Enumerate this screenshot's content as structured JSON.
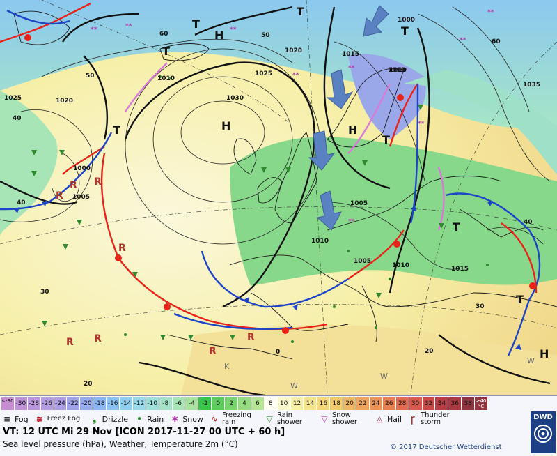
{
  "colors": {
    "warm_front": "#e8231a",
    "cold_front": "#1e44c8",
    "occlusion": "#d97ad8",
    "land_green": "#8fd98f",
    "sea_yellow": "#f5f0a4",
    "arrow_blue": "#5a82c3"
  },
  "map": {
    "pressure_centers": [
      {
        "symbol": "H",
        "kind": "high"
      },
      {
        "symbol": "H",
        "kind": "high"
      },
      {
        "symbol": "H",
        "kind": "high"
      },
      {
        "symbol": "H",
        "kind": "high"
      },
      {
        "symbol": "T",
        "kind": "low"
      },
      {
        "symbol": "T",
        "kind": "low"
      },
      {
        "symbol": "T",
        "kind": "low"
      },
      {
        "symbol": "T",
        "kind": "low"
      },
      {
        "symbol": "T",
        "kind": "low"
      },
      {
        "symbol": "T",
        "kind": "low"
      },
      {
        "symbol": "T",
        "kind": "low"
      },
      {
        "symbol": "T",
        "kind": "low"
      }
    ],
    "isobar_labels": [
      "1030",
      "1025",
      "1020",
      "1010",
      "1005",
      "1000",
      "1015",
      "1035",
      "1010",
      "1005",
      "1010",
      "1020",
      "1025",
      "1000",
      "1010",
      "1015",
      "1005",
      "1010"
    ],
    "temperature_labels": [
      "50",
      "40",
      "30",
      "20",
      "40",
      "60",
      "50",
      "60",
      "40",
      "30",
      "20",
      "0"
    ],
    "wind_labels": [
      "W",
      "W",
      "K",
      "W"
    ]
  },
  "legend": {
    "scale_unit_low": "<-30",
    "scale_values": [
      "-30",
      "-28",
      "-26",
      "-24",
      "-22",
      "-20",
      "-18",
      "-16",
      "-14",
      "-12",
      "-10",
      "-8",
      "-6",
      "-4",
      "-2",
      "0",
      "2",
      "4",
      "6",
      "8",
      "10",
      "12",
      "14",
      "16",
      "18",
      "20",
      "22",
      "24",
      "26",
      "28",
      "30",
      "32",
      "34",
      "36",
      "38"
    ],
    "scale_unit_high": "≥40 °C",
    "scale_colors": [
      "#c68ed1",
      "#bf92d6",
      "#ba97dc",
      "#b49de1",
      "#ad9ee6",
      "#a0a2ea",
      "#95abed",
      "#8cb6f1",
      "#8ac3f3",
      "#8fd0f1",
      "#98daea",
      "#9fe0dc",
      "#a4e3c8",
      "#a8e4b5",
      "#a9e3a0",
      "#39c44a",
      "#5ccd5c",
      "#78d46c",
      "#95dc80",
      "#b5e595",
      "#fdfdf4",
      "#f9f7cc",
      "#f6efa5",
      "#f5e48e",
      "#f4d77a",
      "#f1c96d",
      "#efb665",
      "#eca45f",
      "#e9925a",
      "#e57f54",
      "#e06b50",
      "#d65a4d",
      "#c84b49",
      "#b73e45",
      "#a83b42",
      "#8f3540"
    ],
    "weather": [
      {
        "label": "Fog",
        "icon": "fog-icon"
      },
      {
        "label": "Freez Fog",
        "icon": "freezing-fog-icon"
      },
      {
        "label": "Drizzle",
        "icon": "drizzle-icon"
      },
      {
        "label": "Rain",
        "icon": "rain-icon"
      },
      {
        "label": "Snow",
        "icon": "snow-icon"
      },
      {
        "label": "Freezing rain",
        "icon": "freezing-rain-icon"
      },
      {
        "label": "Rain shower",
        "icon": "rain-shower-icon"
      },
      {
        "label": "Snow shower",
        "icon": "snow-shower-icon"
      },
      {
        "label": "Hail",
        "icon": "hail-icon"
      },
      {
        "label": "Thunder storm",
        "icon": "thunderstorm-icon"
      }
    ],
    "valid_time": "VT: 12 UTC Mi  29 Nov [ICON 2017-11-27  00 UTC + 60 h]",
    "description": "Sea level pressure (hPa), Weather, Temperature 2m (°C)",
    "copyright": "© 2017 Deutscher Wetterdienst",
    "brand": "DWD"
  }
}
